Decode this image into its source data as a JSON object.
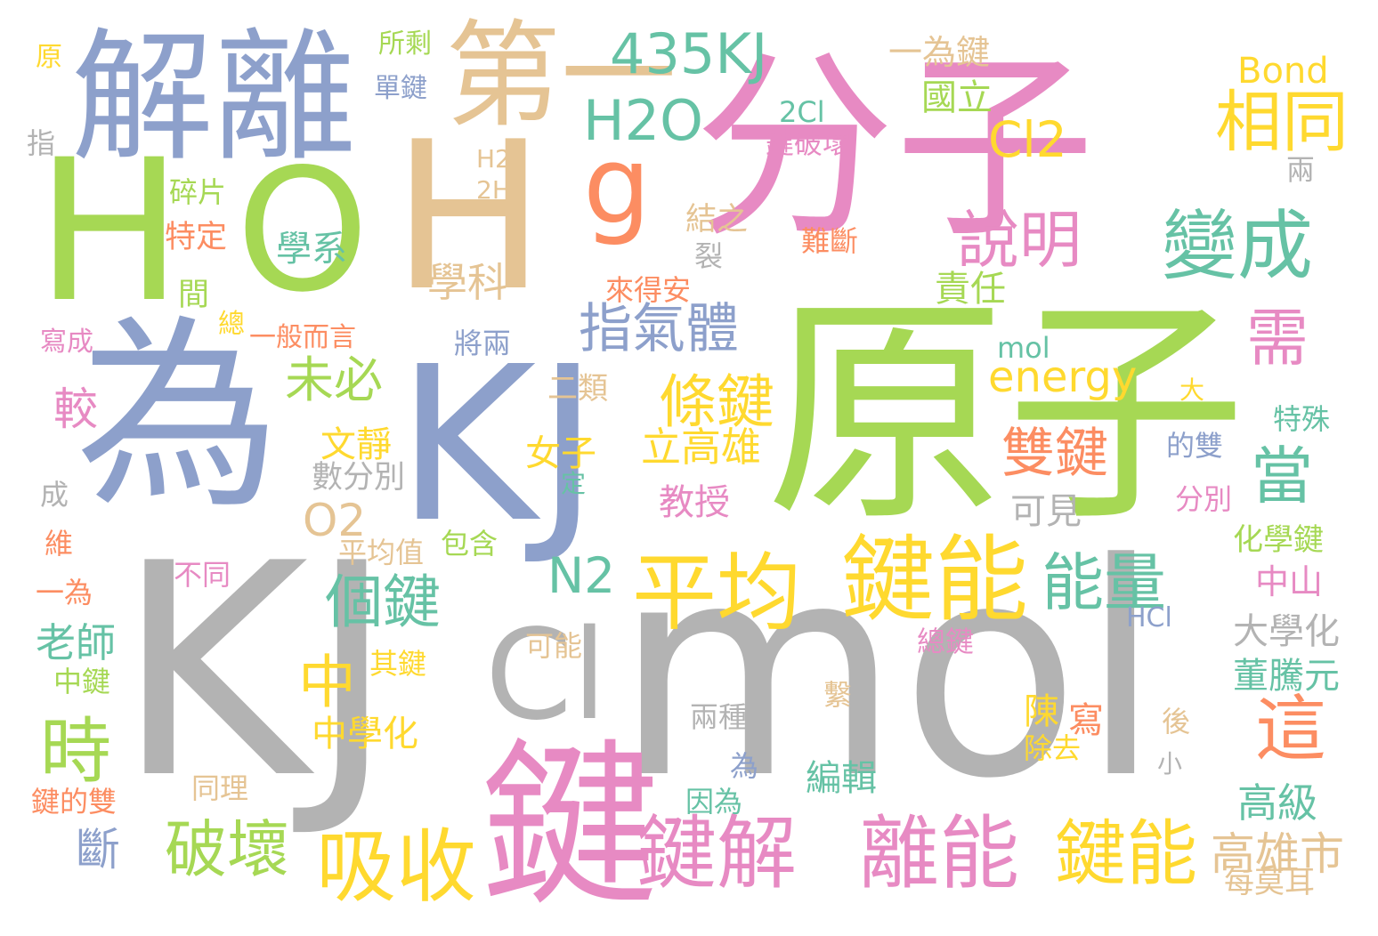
{
  "palette": {
    "green": "#a6d854",
    "pink": "#e78ac3",
    "blue": "#8da0cb",
    "gray": "#b3b3b3",
    "yellow": "#ffd92f",
    "tan": "#e5c494",
    "teal": "#66c2a5",
    "orange": "#fc8d62"
  },
  "words": [
    {
      "text": "KJ",
      "color": "gray"
    },
    {
      "text": "mol",
      "color": "gray"
    },
    {
      "text": "原子",
      "color": "green"
    },
    {
      "text": "分子",
      "color": "pink"
    },
    {
      "text": "為",
      "color": "blue"
    },
    {
      "text": "KJ",
      "color": "blue"
    },
    {
      "text": "H",
      "color": "green"
    },
    {
      "text": "O",
      "color": "green"
    },
    {
      "text": "H",
      "color": "tan"
    },
    {
      "text": "解離",
      "color": "blue"
    },
    {
      "text": "第一",
      "color": "tan"
    },
    {
      "text": "g",
      "color": "orange"
    },
    {
      "text": "鍵",
      "color": "pink"
    },
    {
      "text": "Cl",
      "color": "gray"
    },
    {
      "text": "435KJ",
      "color": "teal"
    },
    {
      "text": "H2O",
      "color": "teal"
    },
    {
      "text": "Bond",
      "color": "yellow"
    },
    {
      "text": "相同",
      "color": "yellow"
    },
    {
      "text": "Cl2",
      "color": "yellow"
    },
    {
      "text": "國立",
      "color": "green"
    },
    {
      "text": "一為鍵",
      "color": "tan"
    },
    {
      "text": "2Cl",
      "color": "teal"
    },
    {
      "text": "鍵破壞",
      "color": "pink"
    },
    {
      "text": "變成",
      "color": "teal"
    },
    {
      "text": "說明",
      "color": "pink"
    },
    {
      "text": "責任",
      "color": "green"
    },
    {
      "text": "需",
      "color": "pink"
    },
    {
      "text": "mol",
      "color": "teal"
    },
    {
      "text": "energy",
      "color": "yellow"
    },
    {
      "text": "當",
      "color": "teal"
    },
    {
      "text": "雙鍵",
      "color": "orange"
    },
    {
      "text": "這",
      "color": "orange"
    },
    {
      "text": "能量",
      "color": "teal"
    },
    {
      "text": "鍵能",
      "color": "yellow"
    },
    {
      "text": "平均",
      "color": "yellow"
    },
    {
      "text": "N2",
      "color": "teal"
    },
    {
      "text": "條鍵",
      "color": "yellow"
    },
    {
      "text": "立高雄",
      "color": "yellow"
    },
    {
      "text": "指氣體",
      "color": "blue"
    },
    {
      "text": "未必",
      "color": "green"
    },
    {
      "text": "O2",
      "color": "tan"
    },
    {
      "text": "文靜",
      "color": "yellow"
    },
    {
      "text": "個鍵",
      "color": "teal"
    },
    {
      "text": "中",
      "color": "yellow"
    },
    {
      "text": "時",
      "color": "green"
    },
    {
      "text": "較",
      "color": "pink"
    },
    {
      "text": "老師",
      "color": "teal"
    },
    {
      "text": "破壞",
      "color": "green"
    },
    {
      "text": "吸收",
      "color": "yellow"
    },
    {
      "text": "鍵解",
      "color": "pink"
    },
    {
      "text": "離能",
      "color": "pink"
    },
    {
      "text": "鍵能",
      "color": "yellow"
    },
    {
      "text": "高雄市",
      "color": "tan"
    },
    {
      "text": "每莫耳",
      "color": "tan"
    },
    {
      "text": "高級",
      "color": "teal"
    },
    {
      "text": "董騰元",
      "color": "teal"
    },
    {
      "text": "大學化",
      "color": "gray"
    },
    {
      "text": "中山",
      "color": "pink"
    },
    {
      "text": "化學鍵",
      "color": "green"
    },
    {
      "text": "HCl",
      "color": "blue"
    },
    {
      "text": "可見",
      "color": "gray"
    },
    {
      "text": "分別",
      "color": "pink"
    },
    {
      "text": "的雙",
      "color": "blue"
    },
    {
      "text": "特殊",
      "color": "teal"
    },
    {
      "text": "大",
      "color": "yellow"
    },
    {
      "text": "兩",
      "color": "gray"
    },
    {
      "text": "學科",
      "color": "tan"
    },
    {
      "text": "學系",
      "color": "teal"
    },
    {
      "text": "碎片",
      "color": "green"
    },
    {
      "text": "特定",
      "color": "orange"
    },
    {
      "text": "間",
      "color": "green"
    },
    {
      "text": "結之",
      "color": "tan"
    },
    {
      "text": "裂",
      "color": "gray"
    },
    {
      "text": "難斷",
      "color": "orange"
    },
    {
      "text": "來得安",
      "color": "orange"
    },
    {
      "text": "H2",
      "color": "tan"
    },
    {
      "text": "2H",
      "color": "tan"
    },
    {
      "text": "所剩",
      "color": "green"
    },
    {
      "text": "單鍵",
      "color": "blue"
    },
    {
      "text": "原",
      "color": "yellow"
    },
    {
      "text": "指",
      "color": "gray"
    },
    {
      "text": "總",
      "color": "yellow"
    },
    {
      "text": "一般而言",
      "color": "orange"
    },
    {
      "text": "寫成",
      "color": "pink"
    },
    {
      "text": "將兩",
      "color": "blue"
    },
    {
      "text": "二類",
      "color": "tan"
    },
    {
      "text": "女子",
      "color": "yellow"
    },
    {
      "text": "數分別",
      "color": "gray"
    },
    {
      "text": "教授",
      "color": "pink"
    },
    {
      "text": "定",
      "color": "teal"
    },
    {
      "text": "成",
      "color": "gray"
    },
    {
      "text": "維",
      "color": "orange"
    },
    {
      "text": "一為",
      "color": "orange"
    },
    {
      "text": "不同",
      "color": "pink"
    },
    {
      "text": "平均值",
      "color": "tan"
    },
    {
      "text": "包含",
      "color": "green"
    },
    {
      "text": "可能",
      "color": "tan"
    },
    {
      "text": "中鍵",
      "color": "green"
    },
    {
      "text": "其鍵",
      "color": "yellow"
    },
    {
      "text": "中學化",
      "color": "yellow"
    },
    {
      "text": "總鍵",
      "color": "pink"
    },
    {
      "text": "繫",
      "color": "tan"
    },
    {
      "text": "兩種",
      "color": "gray"
    },
    {
      "text": "陳",
      "color": "yellow"
    },
    {
      "text": "寫",
      "color": "orange"
    },
    {
      "text": "除去",
      "color": "yellow"
    },
    {
      "text": "後",
      "color": "tan"
    },
    {
      "text": "小",
      "color": "gray"
    },
    {
      "text": "為",
      "color": "blue"
    },
    {
      "text": "編輯",
      "color": "teal"
    },
    {
      "text": "同理",
      "color": "tan"
    },
    {
      "text": "鍵的雙",
      "color": "orange"
    },
    {
      "text": "斷",
      "color": "blue"
    },
    {
      "text": "因為",
      "color": "teal"
    }
  ]
}
